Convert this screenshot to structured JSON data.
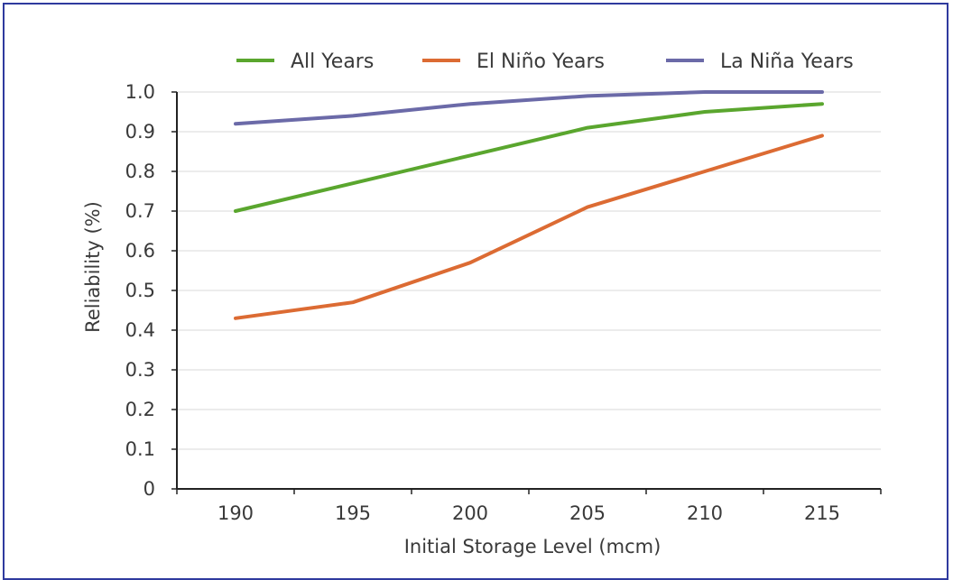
{
  "chart_data": {
    "type": "line",
    "title": "",
    "xlabel": "Initial Storage Level (mcm)",
    "ylabel": "Reliability (%)",
    "x": [
      190,
      195,
      200,
      205,
      210,
      215
    ],
    "xlim": [
      187.5,
      217.5
    ],
    "ylim": [
      0,
      1.0
    ],
    "y_ticks": [
      "0",
      "0.1",
      "0.2",
      "0.3",
      "0.4",
      "0.5",
      "0.6",
      "0.7",
      "0.8",
      "0.9",
      "1.0"
    ],
    "x_ticks": [
      "190",
      "195",
      "200",
      "205",
      "210",
      "215"
    ],
    "grid": "horizontal",
    "legend_position": "top",
    "series": [
      {
        "name": "All Years",
        "color": "#5aa62e",
        "values": [
          0.7,
          0.77,
          0.84,
          0.91,
          0.95,
          0.97
        ]
      },
      {
        "name": "El Niño Years",
        "color": "#dc6b33",
        "values": [
          0.43,
          0.47,
          0.57,
          0.71,
          0.8,
          0.89
        ]
      },
      {
        "name": "La Niña Years",
        "color": "#6b6aa8",
        "values": [
          0.92,
          0.94,
          0.97,
          0.99,
          1.0,
          1.0
        ]
      }
    ]
  }
}
